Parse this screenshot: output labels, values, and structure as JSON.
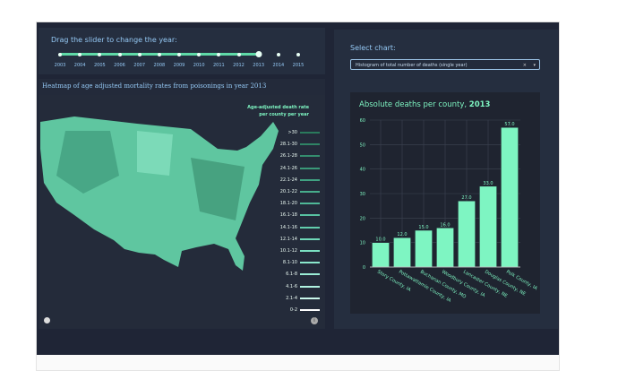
{
  "slider": {
    "label": "Drag the slider to change the year:",
    "years": [
      "2003",
      "2004",
      "2005",
      "2006",
      "2007",
      "2008",
      "2009",
      "2010",
      "2011",
      "2012",
      "2013",
      "2014",
      "2015"
    ],
    "selected": "2013"
  },
  "map": {
    "title": "Heatmap of age adjusted mortality rates from poisonings in year 2013",
    "legend_title": [
      "Age-adjusted death rate",
      "per county per year"
    ],
    "legend": [
      ">30",
      "28.1-30",
      "26.1-28",
      "24.1-26",
      "22.1-24",
      "20.1-22",
      "18.1-20",
      "16.1-18",
      "14.1-16",
      "12.1-14",
      "10.1-12",
      "8.1-10",
      "6.1-8",
      "4.1-6",
      "2.1-4",
      "0-2"
    ],
    "legend_colors": [
      "#2a7a5c",
      "#2f8465",
      "#348e6e",
      "#3a9878",
      "#40a282",
      "#47ad8c",
      "#4fb897",
      "#58c3a2",
      "#62cead",
      "#6ed8b8",
      "#7be1c2",
      "#8ae8cc",
      "#9aeed6",
      "#b0f3e1",
      "#c9f7eb",
      "#ffffff"
    ],
    "mapbox_icon": "mapbox-logo",
    "info_icon": "info-icon"
  },
  "right": {
    "select_label": "Select chart:",
    "select_value": "Histogram of total number of deaths (single year)"
  },
  "chart_data": {
    "type": "bar",
    "title": "Absolute deaths per county, ",
    "title_year": "2013",
    "categories": [
      "Story County, IA",
      "Pottawattamie County, IA",
      "Buchanan County, MO",
      "Woodbury County, IA",
      "Lancaster County, NE",
      "Douglas County, NE",
      "Polk County, IA"
    ],
    "values": [
      10,
      12,
      15,
      16,
      27,
      33,
      57
    ],
    "labels": [
      "10.0",
      "12.0",
      "15.0",
      "16.0",
      "27.0",
      "33.0",
      "57.0"
    ],
    "ylim": [
      0,
      60
    ],
    "yticks": [
      "0",
      "10",
      "20",
      "30",
      "40",
      "50",
      "60"
    ],
    "grid": true,
    "bar_color": "#7ef5c2"
  }
}
